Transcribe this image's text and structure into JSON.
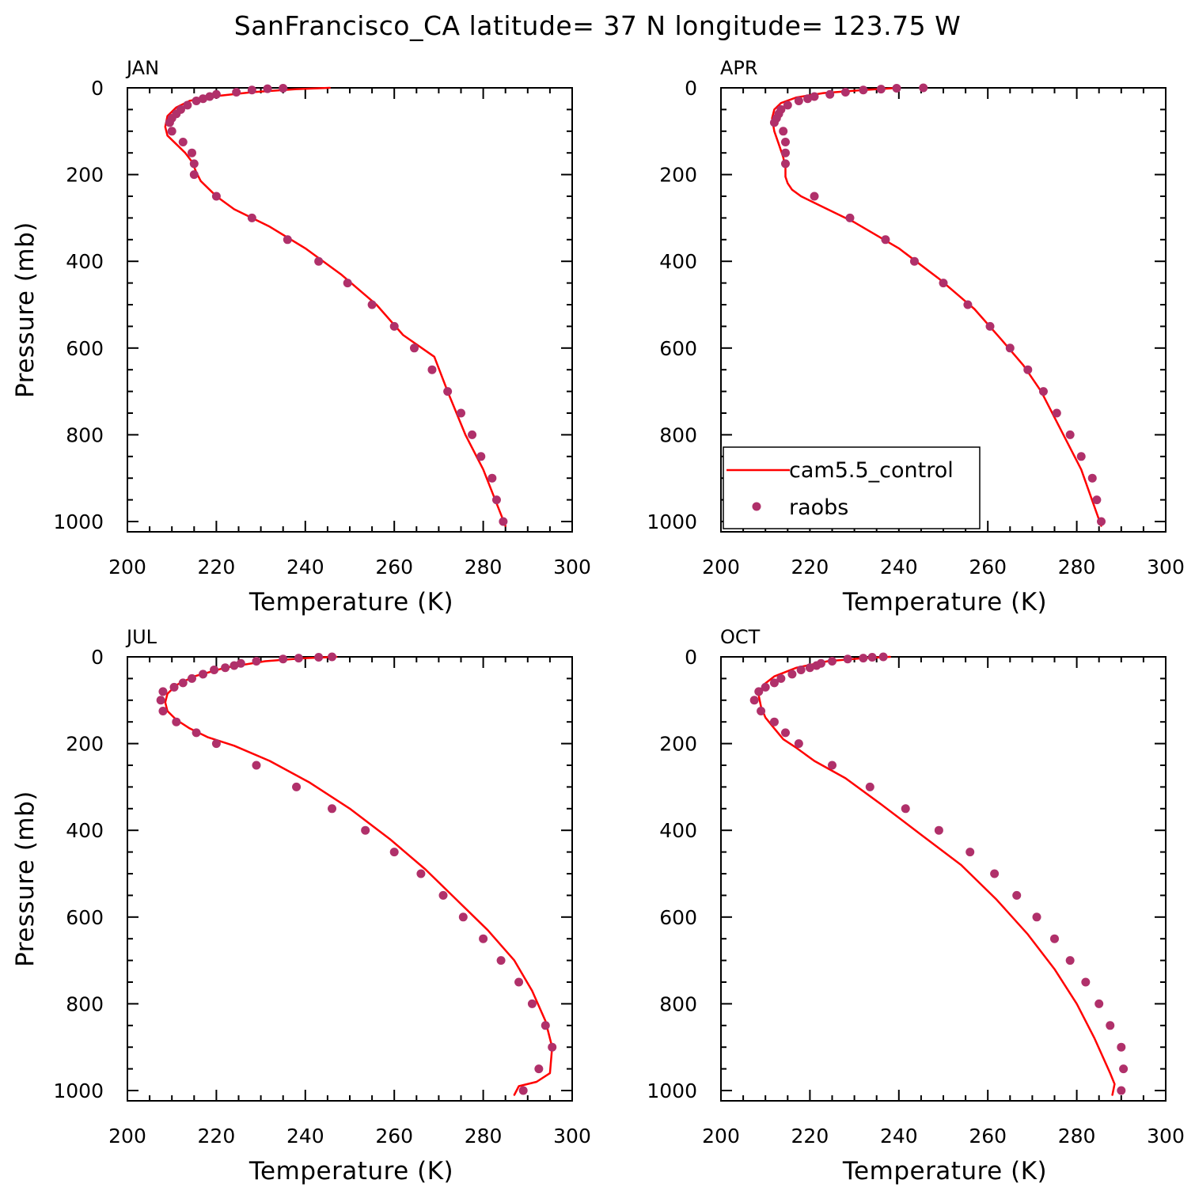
{
  "title": "SanFrancisco_CA  latitude= 37 N longitude= 123.75 W",
  "colors": {
    "model": "#ff0000",
    "obs": "#b0306a",
    "axis": "#000000",
    "background": "#ffffff"
  },
  "legend": {
    "placement": "inside APR panel, lower-left",
    "model_label": "cam5.5_control",
    "obs_label": "raobs"
  },
  "chart_data": [
    {
      "type": "line+scatter",
      "panel": "JAN",
      "xlabel": "Temperature (K)",
      "ylabel": "Pressure (mb)",
      "xlim": [
        200,
        300
      ],
      "ylim": [
        1020,
        0
      ],
      "x_ticks": [
        "200",
        "220",
        "240",
        "260",
        "280",
        "300"
      ],
      "y_ticks": [
        "0",
        "200",
        "400",
        "600",
        "800",
        "1000"
      ],
      "series": [
        {
          "name": "cam5.5_control",
          "kind": "line",
          "x": [
            245.5,
            238,
            228,
            219,
            214,
            211,
            209,
            208.5,
            209,
            211,
            213,
            214.5,
            215.5,
            216.5,
            218.5,
            220,
            224,
            232,
            240,
            248,
            256,
            262,
            269,
            272,
            276,
            280,
            285
          ],
          "y": [
            0,
            3,
            10,
            20,
            30,
            45,
            65,
            90,
            110,
            130,
            150,
            170,
            195,
            215,
            235,
            250,
            280,
            320,
            370,
            430,
            500,
            570,
            620,
            700,
            800,
            880,
            1010
          ]
        },
        {
          "name": "raobs",
          "kind": "scatter",
          "x": [
            235,
            231.5,
            228,
            224.5,
            220,
            218.5,
            217,
            215.5,
            213.5,
            212,
            211,
            210,
            209.5,
            210,
            212.5,
            214.5,
            215,
            215,
            220,
            228,
            236,
            243,
            249.5,
            255,
            260,
            264.5,
            268.5,
            272,
            275,
            277.5,
            279.5,
            282,
            283,
            284.5
          ],
          "y": [
            1,
            2,
            5,
            10,
            15,
            20,
            25,
            30,
            40,
            50,
            60,
            70,
            80,
            100,
            125,
            150,
            175,
            200,
            250,
            300,
            350,
            400,
            450,
            500,
            550,
            600,
            650,
            700,
            750,
            800,
            850,
            900,
            950,
            1000
          ]
        }
      ]
    },
    {
      "type": "line+scatter",
      "panel": "APR",
      "xlabel": "Temperature (K)",
      "ylabel": "",
      "xlim": [
        200,
        300
      ],
      "ylim": [
        1020,
        0
      ],
      "x_ticks": [
        "200",
        "220",
        "240",
        "260",
        "280",
        "300"
      ],
      "y_ticks": [
        "0",
        "200",
        "400",
        "600",
        "800",
        "1000"
      ],
      "series": [
        {
          "name": "cam5.5_control",
          "kind": "line",
          "x": [
            240,
            232,
            223,
            217,
            213.5,
            212,
            211.5,
            212,
            213,
            214,
            214.5,
            214.5,
            215,
            216,
            218,
            222,
            230,
            240,
            249,
            257,
            263,
            268,
            272,
            276,
            281,
            285.5
          ],
          "y": [
            0,
            5,
            12,
            22,
            35,
            50,
            70,
            100,
            130,
            160,
            185,
            205,
            220,
            235,
            250,
            270,
            310,
            370,
            440,
            510,
            580,
            640,
            700,
            780,
            880,
            1010
          ]
        },
        {
          "name": "raobs",
          "kind": "scatter",
          "x": [
            245.5,
            239.5,
            236,
            232,
            228,
            224.5,
            221,
            219.5,
            217.5,
            215,
            213.5,
            213,
            212.5,
            212,
            214,
            214.5,
            214.5,
            214.5,
            221,
            229,
            237,
            243.5,
            250,
            255.5,
            260.5,
            265,
            269,
            272.5,
            275.5,
            278.5,
            281,
            283.5,
            284.5,
            285.5
          ],
          "y": [
            0,
            1,
            3,
            5,
            10,
            15,
            20,
            25,
            30,
            40,
            50,
            60,
            70,
            80,
            100,
            125,
            150,
            175,
            250,
            300,
            350,
            400,
            450,
            500,
            550,
            600,
            650,
            700,
            750,
            800,
            850,
            900,
            950,
            1000
          ]
        }
      ]
    },
    {
      "type": "line+scatter",
      "panel": "JUL",
      "xlabel": "Temperature (K)",
      "ylabel": "Pressure (mb)",
      "xlim": [
        200,
        300
      ],
      "ylim": [
        1020,
        0
      ],
      "x_ticks": [
        "200",
        "220",
        "240",
        "260",
        "280",
        "300"
      ],
      "y_ticks": [
        "0",
        "200",
        "400",
        "600",
        "800",
        "1000"
      ],
      "series": [
        {
          "name": "cam5.5_control",
          "kind": "line",
          "x": [
            247,
            240,
            231,
            222,
            215,
            211,
            209,
            208.5,
            209,
            211,
            214,
            218,
            224,
            232,
            241,
            250,
            259,
            267,
            274,
            281,
            287,
            291,
            294,
            295.5,
            295,
            292,
            288,
            287
          ],
          "y": [
            0,
            3,
            10,
            25,
            45,
            65,
            85,
            105,
            125,
            145,
            165,
            185,
            205,
            240,
            290,
            350,
            420,
            490,
            560,
            630,
            700,
            770,
            840,
            900,
            960,
            980,
            990,
            1010
          ]
        },
        {
          "name": "raobs",
          "kind": "scatter",
          "x": [
            246,
            243,
            238.5,
            235,
            229,
            225.5,
            224,
            222,
            219.5,
            217,
            214.5,
            212.5,
            210.5,
            208,
            207.5,
            208,
            211,
            215.5,
            220,
            229,
            238,
            246,
            253.5,
            260,
            266,
            271,
            275.5,
            280,
            284,
            288,
            291,
            294,
            295.5,
            292.5,
            289
          ],
          "y": [
            0,
            1,
            3,
            5,
            10,
            15,
            20,
            25,
            30,
            40,
            50,
            60,
            70,
            80,
            100,
            125,
            150,
            175,
            200,
            250,
            300,
            350,
            400,
            450,
            500,
            550,
            600,
            650,
            700,
            750,
            800,
            850,
            900,
            950,
            1000
          ]
        }
      ]
    },
    {
      "type": "line+scatter",
      "panel": "OCT",
      "xlabel": "Temperature (K)",
      "ylabel": "",
      "xlim": [
        200,
        300
      ],
      "ylim": [
        1020,
        0
      ],
      "x_ticks": [
        "200",
        "220",
        "240",
        "260",
        "280",
        "300"
      ],
      "y_ticks": [
        "0",
        "200",
        "400",
        "600",
        "800",
        "1000"
      ],
      "series": [
        {
          "name": "cam5.5_control",
          "kind": "line",
          "x": [
            238,
            232,
            224,
            217,
            212,
            209.5,
            208.5,
            209,
            210,
            212,
            214,
            217,
            221,
            228,
            236,
            245,
            254,
            262,
            269,
            275,
            280,
            284,
            287.5,
            288.5,
            288
          ],
          "y": [
            0,
            3,
            10,
            25,
            45,
            65,
            90,
            115,
            140,
            165,
            190,
            210,
            240,
            280,
            340,
            410,
            480,
            560,
            640,
            720,
            800,
            880,
            960,
            985,
            1010
          ]
        },
        {
          "name": "raobs",
          "kind": "scatter",
          "x": [
            236.5,
            234,
            232,
            228.5,
            225,
            222.5,
            221.5,
            220,
            218,
            216,
            213.5,
            212,
            210,
            208.5,
            207.5,
            209,
            212,
            214.5,
            217.5,
            225,
            233.5,
            241.5,
            249,
            256,
            261.5,
            266.5,
            271,
            275,
            278.5,
            282,
            285,
            287.5,
            290,
            290.5,
            290
          ],
          "y": [
            0,
            1,
            3,
            5,
            10,
            15,
            20,
            25,
            30,
            40,
            50,
            60,
            70,
            80,
            100,
            125,
            150,
            175,
            200,
            250,
            300,
            350,
            400,
            450,
            500,
            550,
            600,
            650,
            700,
            750,
            800,
            850,
            900,
            950,
            1000
          ]
        }
      ]
    }
  ]
}
